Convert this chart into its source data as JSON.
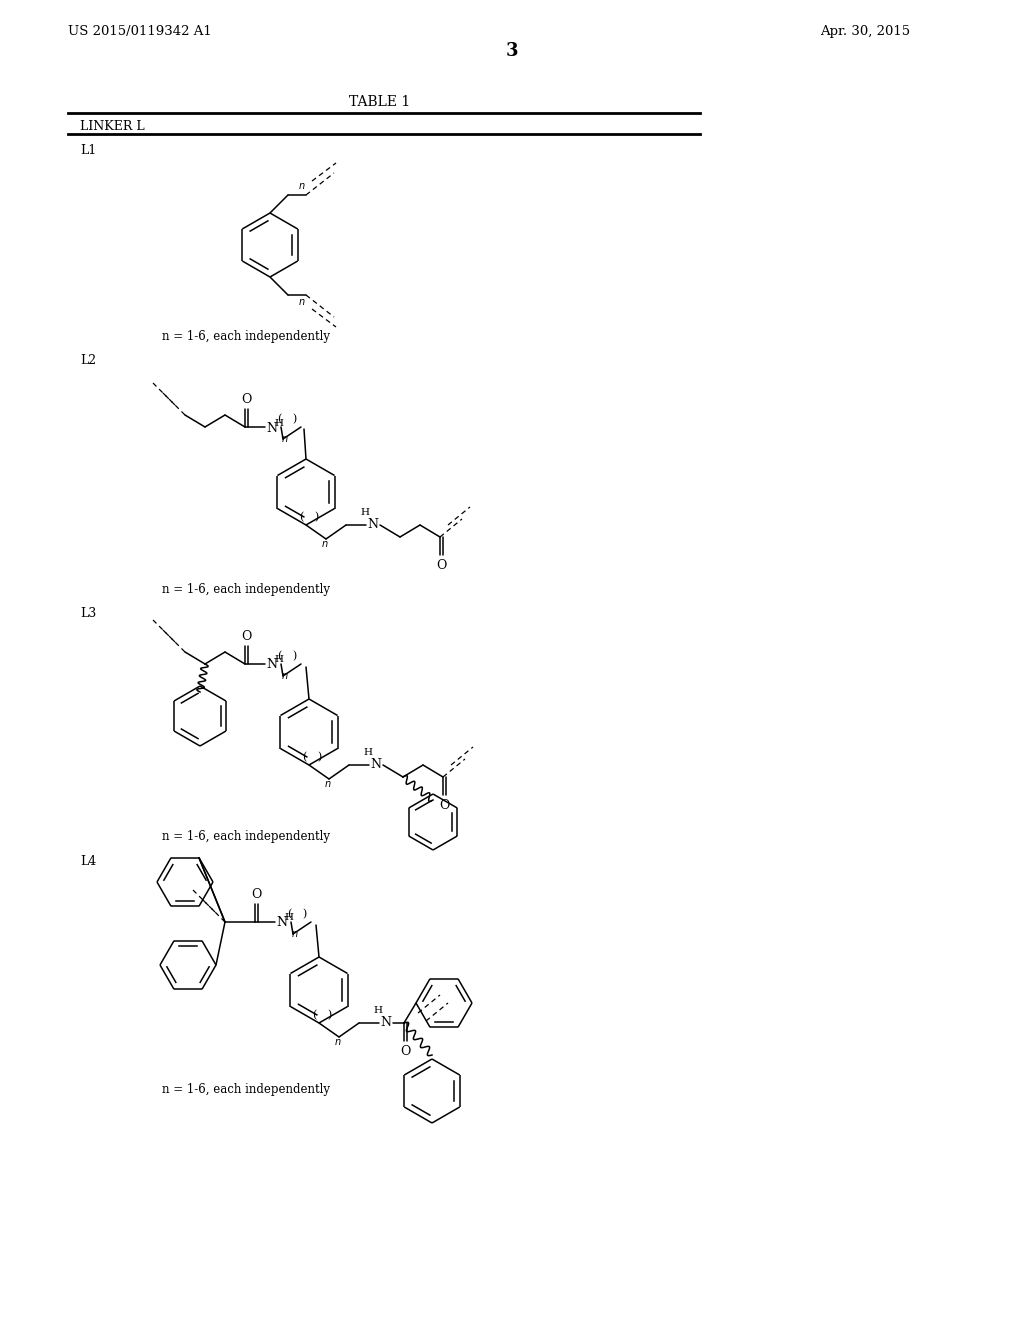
{
  "title_left": "US 2015/0119342 A1",
  "title_right": "Apr. 30, 2015",
  "page_number": "3",
  "table_title": "TABLE 1",
  "linker_header": "LINKER L",
  "note": "n = 1-6, each independently",
  "background": "#ffffff",
  "text_color": "#000000"
}
